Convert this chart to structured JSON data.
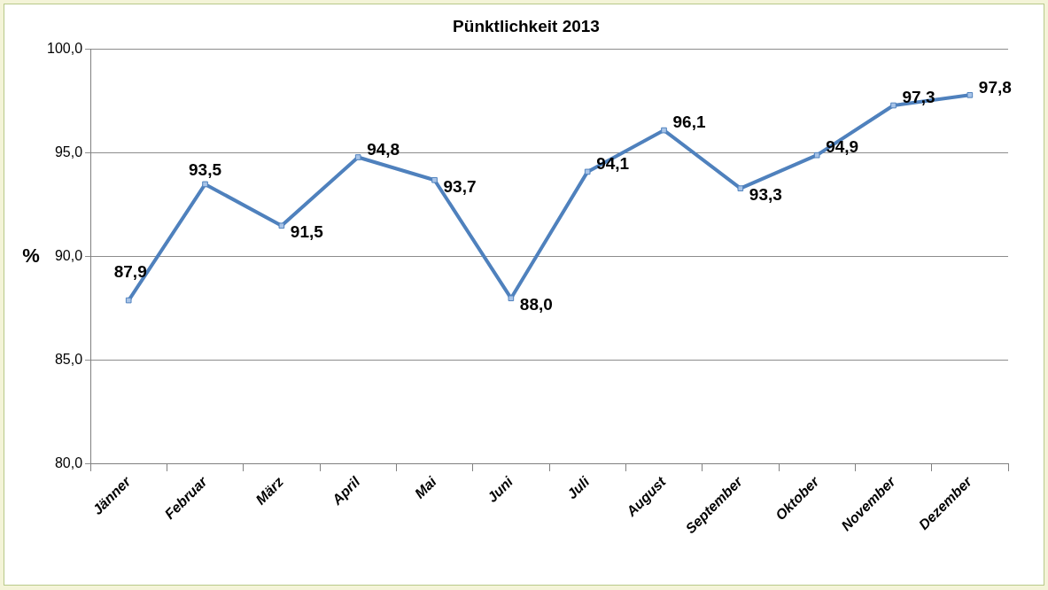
{
  "chart_data": {
    "type": "line",
    "title": "Pünktlichkeit 2013",
    "ylabel": "%",
    "categories": [
      "Jänner",
      "Februar",
      "März",
      "April",
      "Mai",
      "Juni",
      "Juli",
      "August",
      "September",
      "Oktober",
      "November",
      "Dezember"
    ],
    "series": [
      {
        "color": "#4f81bd",
        "values": [
          87.9,
          93.5,
          91.5,
          94.8,
          93.7,
          88.0,
          94.1,
          96.1,
          93.3,
          94.9,
          97.3,
          97.8
        ],
        "value_labels": [
          "87,9",
          "93,5",
          "91,5",
          "94,8",
          "93,7",
          "88,0",
          "94,1",
          "96,1",
          "93,3",
          "94,9",
          "97,3",
          "97,8"
        ]
      }
    ],
    "ylim": [
      80,
      100
    ],
    "yticks": [
      {
        "value": 80,
        "label": "80,0"
      },
      {
        "value": 85,
        "label": "85,0"
      },
      {
        "value": 90,
        "label": "90,0"
      },
      {
        "value": 95,
        "label": "95,0"
      },
      {
        "value": 100,
        "label": "100,0"
      }
    ],
    "grid": "y",
    "marker": "square",
    "line_style": "solid",
    "legend": false
  }
}
